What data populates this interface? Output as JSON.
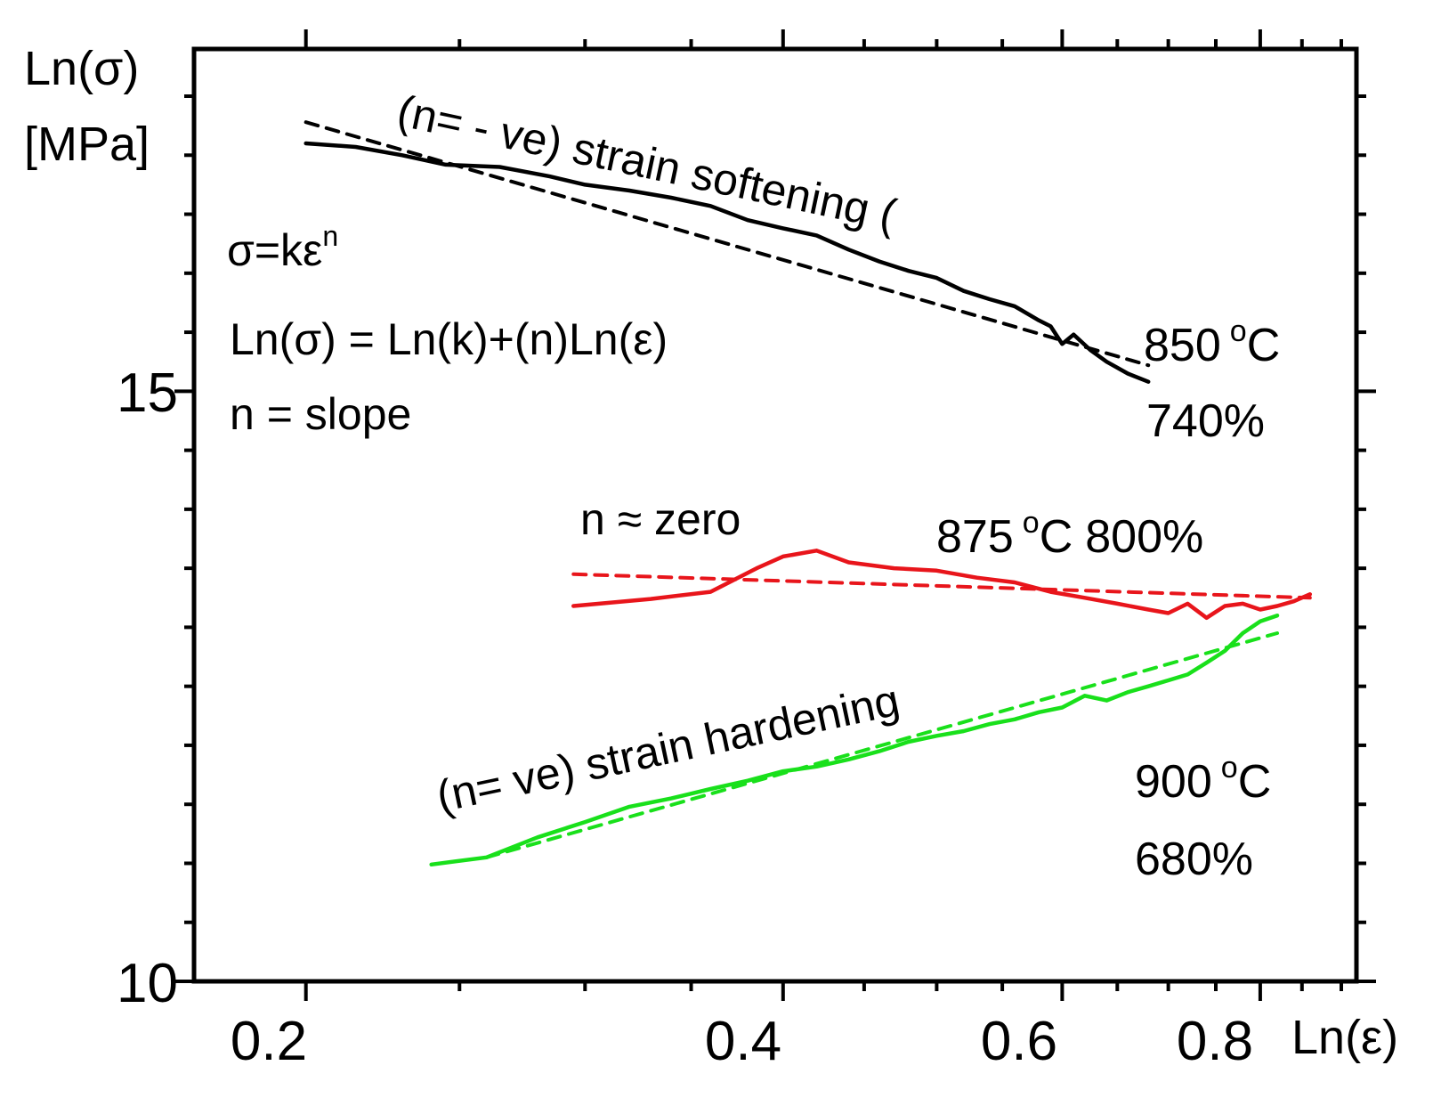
{
  "chart_data": {
    "type": "line",
    "xlabel": "Ln(ε)",
    "ylabel_line1": "Ln(σ)",
    "ylabel_line2": "[MPa]",
    "x_scale": "log",
    "xlim": [
      0.17,
      0.92
    ],
    "ylim": [
      10,
      17.9
    ],
    "x_ticks": [
      0.2,
      0.4,
      0.6,
      0.8
    ],
    "x_tick_labels": [
      "0.2",
      "0.4",
      "0.6",
      "0.8"
    ],
    "y_ticks": [
      10,
      15
    ],
    "y_tick_labels": [
      "10",
      "15"
    ],
    "grid": false,
    "annotations": {
      "eq1": "σ=kε",
      "eq1_sup": "n",
      "eq2": "Ln(σ) = Ln(k)+(n)Ln(ε)",
      "eq3": "n = slope",
      "softening": "(n= - ve) strain softening (",
      "zero": "n ≈ zero",
      "hardening": "(n= ve) strain hardening"
    },
    "series": [
      {
        "temp": "850",
        "elong": "740%",
        "color": "#000000",
        "x": [
          0.2,
          0.215,
          0.23,
          0.245,
          0.265,
          0.285,
          0.3,
          0.32,
          0.34,
          0.36,
          0.38,
          0.4,
          0.42,
          0.44,
          0.46,
          0.48,
          0.5,
          0.52,
          0.54,
          0.56,
          0.58,
          0.59,
          0.6,
          0.61,
          0.625,
          0.64,
          0.66,
          0.68
        ],
        "values": [
          17.1,
          17.07,
          17.0,
          16.92,
          16.9,
          16.82,
          16.75,
          16.7,
          16.64,
          16.57,
          16.45,
          16.38,
          16.32,
          16.2,
          16.1,
          16.02,
          15.96,
          15.85,
          15.78,
          15.72,
          15.6,
          15.55,
          15.4,
          15.48,
          15.35,
          15.25,
          15.15,
          15.08
        ],
        "fit": {
          "x": [
            0.2,
            0.68
          ],
          "values": [
            17.28,
            15.22
          ]
        }
      },
      {
        "temp": "875",
        "elong": "800%",
        "color": "#e8151b",
        "x": [
          0.295,
          0.33,
          0.36,
          0.385,
          0.4,
          0.42,
          0.44,
          0.47,
          0.5,
          0.53,
          0.56,
          0.59,
          0.62,
          0.65,
          0.68,
          0.7,
          0.72,
          0.74,
          0.76,
          0.78,
          0.8,
          0.82,
          0.84,
          0.86
        ],
        "values": [
          13.18,
          13.24,
          13.3,
          13.5,
          13.6,
          13.65,
          13.55,
          13.5,
          13.48,
          13.42,
          13.38,
          13.3,
          13.25,
          13.2,
          13.15,
          13.12,
          13.2,
          13.08,
          13.18,
          13.2,
          13.15,
          13.18,
          13.22,
          13.28
        ],
        "fit": {
          "x": [
            0.295,
            0.86
          ],
          "values": [
            13.45,
            13.25
          ]
        }
      },
      {
        "temp": "900",
        "elong": "680%",
        "color": "#19e01b",
        "x": [
          0.24,
          0.26,
          0.28,
          0.3,
          0.32,
          0.34,
          0.36,
          0.38,
          0.4,
          0.42,
          0.44,
          0.46,
          0.48,
          0.5,
          0.52,
          0.54,
          0.56,
          0.58,
          0.6,
          0.62,
          0.64,
          0.66,
          0.68,
          0.7,
          0.72,
          0.74,
          0.76,
          0.78,
          0.8,
          0.82
        ],
        "values": [
          10.99,
          11.05,
          11.22,
          11.35,
          11.48,
          11.55,
          11.63,
          11.7,
          11.78,
          11.82,
          11.88,
          11.95,
          12.03,
          12.08,
          12.12,
          12.18,
          12.22,
          12.28,
          12.32,
          12.42,
          12.38,
          12.45,
          12.5,
          12.55,
          12.6,
          12.7,
          12.8,
          12.95,
          13.05,
          13.1
        ],
        "fit": {
          "x": [
            0.26,
            0.82
          ],
          "values": [
            11.05,
            12.95
          ]
        }
      }
    ]
  }
}
